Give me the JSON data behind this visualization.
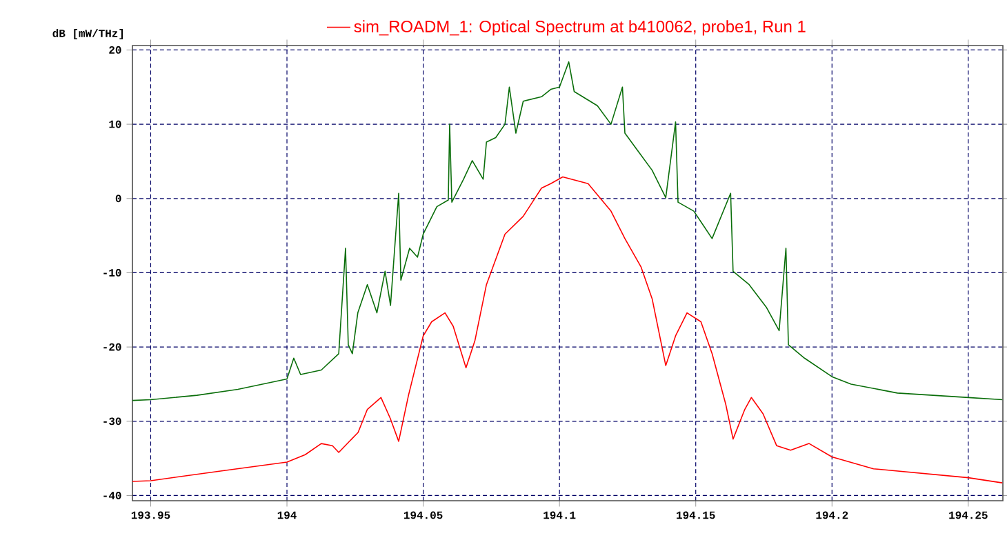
{
  "chart_data": {
    "type": "line",
    "ylabel": "dB [mW/THz]",
    "xlim": [
      193.9433,
      194.2627
    ],
    "ylim": [
      -40.7,
      20.6
    ],
    "xticks": [
      193.95,
      194,
      194.05,
      194.1,
      194.15,
      194.2,
      194.25
    ],
    "yticks": [
      -40,
      -30,
      -20,
      -10,
      0,
      10,
      20
    ],
    "grid": true,
    "legend": "top",
    "marker": "none",
    "line_style": "solid",
    "series": [
      {
        "color": "#0a6e0a",
        "x": [
          193.9433,
          193.95,
          193.967,
          193.982,
          194.0,
          194.0025,
          194.005,
          194.0126,
          194.019,
          194.0215,
          194.0225,
          194.024,
          194.026,
          194.0295,
          194.033,
          194.036,
          194.038,
          194.041,
          194.0418,
          194.045,
          194.0479,
          194.05,
          194.055,
          194.0592,
          194.0597,
          194.0605,
          194.0648,
          194.068,
          194.072,
          194.0732,
          194.0766,
          194.08,
          194.0816,
          194.084,
          194.0867,
          194.0934,
          194.0968,
          194.1,
          194.1034,
          194.1054,
          194.1139,
          194.1189,
          194.1231,
          194.124,
          194.129,
          194.134,
          194.139,
          194.1426,
          194.1435,
          194.1493,
          194.156,
          194.1628,
          194.1637,
          194.1696,
          194.176,
          194.1806,
          194.1831,
          194.184,
          194.1899,
          194.2,
          194.207,
          194.224,
          194.25,
          194.2625
        ],
        "values": [
          -27.2,
          -27.1,
          -26.5,
          -25.7,
          -24.3,
          -21.5,
          -23.7,
          -23.1,
          -20.9,
          -6.7,
          -19.7,
          -20.9,
          -15.4,
          -11.6,
          -15.4,
          -9.8,
          -14.4,
          0.7,
          -11.0,
          -6.7,
          -7.9,
          -4.8,
          -1.1,
          -0.2,
          10.0,
          -0.5,
          2.6,
          5.1,
          2.6,
          7.6,
          8.2,
          10.0,
          15.0,
          8.8,
          13.1,
          13.7,
          14.7,
          15.0,
          18.4,
          14.4,
          12.5,
          10.0,
          15.0,
          8.8,
          6.3,
          3.8,
          0.1,
          10.3,
          -0.5,
          -1.7,
          -5.4,
          0.7,
          -9.8,
          -11.6,
          -14.7,
          -17.8,
          -6.7,
          -19.7,
          -21.5,
          -24.0,
          -25.0,
          -26.2,
          -26.8,
          -27.1
        ]
      },
      {
        "name": "sim_ROADM_1: Optical Spectrum at b410062, probe1, Run 1",
        "color": "#ff0000",
        "x": [
          193.9433,
          193.95,
          193.9756,
          194.0,
          194.0067,
          194.0126,
          194.0167,
          194.019,
          194.0261,
          194.0295,
          194.0345,
          194.0379,
          194.041,
          194.0446,
          194.05,
          194.0531,
          194.058,
          194.061,
          194.0657,
          194.069,
          194.0732,
          194.08,
          194.0867,
          194.0934,
          194.0968,
          194.1012,
          194.1105,
          194.1189,
          194.124,
          194.1299,
          194.134,
          194.139,
          194.1426,
          194.1468,
          194.1519,
          194.156,
          194.161,
          194.1637,
          194.168,
          194.1704,
          194.1747,
          194.1797,
          194.1848,
          194.1916,
          194.2,
          194.2152,
          194.25,
          194.2625
        ],
        "values": [
          -38.1,
          -38.0,
          -36.7,
          -35.5,
          -34.5,
          -33.0,
          -33.3,
          -34.2,
          -31.5,
          -28.4,
          -26.8,
          -29.6,
          -32.7,
          -26.5,
          -18.5,
          -16.6,
          -15.4,
          -17.2,
          -22.8,
          -19.1,
          -11.6,
          -4.8,
          -2.4,
          1.4,
          2.0,
          2.9,
          2.0,
          -1.7,
          -5.4,
          -9.2,
          -13.5,
          -22.5,
          -18.5,
          -15.4,
          -16.6,
          -20.9,
          -27.7,
          -32.4,
          -28.4,
          -26.8,
          -29.0,
          -33.3,
          -33.9,
          -33.0,
          -34.8,
          -36.4,
          -37.6,
          -38.3
        ]
      }
    ]
  }
}
